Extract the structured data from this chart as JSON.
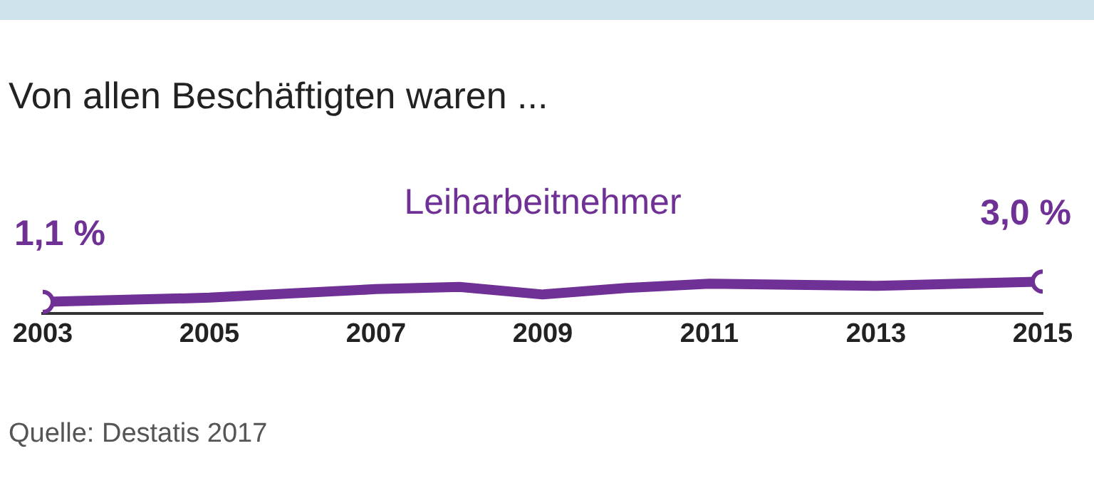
{
  "chart_data": {
    "type": "line",
    "title": "Von allen Beschäftigten waren ...",
    "annotations": [
      "Quelle: Destatis 2017"
    ],
    "x": [
      2003,
      2004,
      2005,
      2006,
      2007,
      2008,
      2009,
      2010,
      2011,
      2012,
      2013,
      2014,
      2015
    ],
    "series": [
      {
        "name": "Leiharbeitnehmer",
        "color": "#6f3196",
        "values": [
          1.1,
          1.3,
          1.5,
          1.9,
          2.3,
          2.5,
          1.8,
          2.4,
          2.8,
          2.7,
          2.6,
          2.8,
          3.0
        ],
        "value_labels": [
          "1,1 %",
          null,
          null,
          null,
          null,
          null,
          null,
          null,
          null,
          null,
          null,
          null,
          "3,0 %"
        ]
      }
    ],
    "xlim": [
      2003,
      2015
    ],
    "xticks": [
      2003,
      2005,
      2007,
      2009,
      2011,
      2013,
      2015
    ],
    "tick_labels": "x",
    "grid": false,
    "legend": false,
    "line_style": "solid"
  }
}
